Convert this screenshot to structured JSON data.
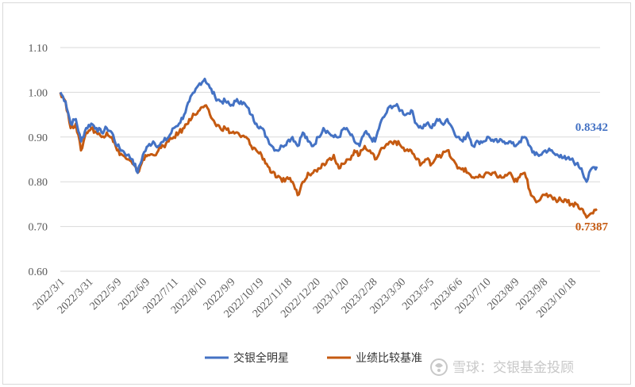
{
  "chart_data": {
    "type": "line",
    "title": "",
    "xlabel": "",
    "ylabel": "",
    "ylim": [
      0.6,
      1.1
    ],
    "yticks": [
      "0.60",
      "0.70",
      "0.80",
      "0.90",
      "1.00",
      "1.10"
    ],
    "xticks": [
      "2022/3/1",
      "2022/3/31",
      "2022/5/9",
      "2022/6/9",
      "2022/7/11",
      "2022/8/10",
      "2022/9/9",
      "2022/10/19",
      "2022/11/18",
      "2022/12/20",
      "2023/1/20",
      "2023/2/28",
      "2023/3/30",
      "2023/5/5",
      "2023/6/6",
      "2023/7/10",
      "2023/8/9",
      "2023/9/8",
      "2023/10/18"
    ],
    "grid": true,
    "legend_position": "bottom",
    "series": [
      {
        "name": "交银全明星",
        "color": "#4472c4",
        "end_label": "0.8342",
        "values": [
          1.0,
          0.98,
          0.93,
          0.94,
          0.89,
          0.92,
          0.93,
          0.92,
          0.91,
          0.92,
          0.91,
          0.88,
          0.87,
          0.86,
          0.85,
          0.82,
          0.86,
          0.88,
          0.89,
          0.88,
          0.89,
          0.9,
          0.92,
          0.93,
          0.95,
          0.98,
          1.0,
          1.02,
          1.03,
          1.01,
          0.99,
          0.98,
          0.98,
          0.97,
          0.98,
          0.98,
          0.97,
          0.95,
          0.93,
          0.92,
          0.9,
          0.88,
          0.87,
          0.88,
          0.89,
          0.9,
          0.88,
          0.91,
          0.89,
          0.88,
          0.9,
          0.92,
          0.91,
          0.9,
          0.9,
          0.92,
          0.91,
          0.89,
          0.88,
          0.91,
          0.9,
          0.89,
          0.93,
          0.95,
          0.97,
          0.97,
          0.96,
          0.95,
          0.96,
          0.93,
          0.92,
          0.93,
          0.92,
          0.94,
          0.93,
          0.94,
          0.92,
          0.9,
          0.89,
          0.91,
          0.88,
          0.89,
          0.89,
          0.9,
          0.89,
          0.89,
          0.89,
          0.89,
          0.88,
          0.89,
          0.9,
          0.88,
          0.86,
          0.86,
          0.87,
          0.87,
          0.86,
          0.86,
          0.85,
          0.85,
          0.84,
          0.83,
          0.8,
          0.83,
          0.834
        ]
      },
      {
        "name": "业绩比较基准",
        "color": "#c55a11",
        "end_label": "0.7387",
        "values": [
          1.0,
          0.98,
          0.92,
          0.93,
          0.87,
          0.91,
          0.92,
          0.91,
          0.9,
          0.91,
          0.9,
          0.87,
          0.86,
          0.85,
          0.84,
          0.82,
          0.85,
          0.86,
          0.86,
          0.87,
          0.88,
          0.89,
          0.9,
          0.91,
          0.92,
          0.94,
          0.95,
          0.96,
          0.97,
          0.95,
          0.93,
          0.92,
          0.92,
          0.91,
          0.91,
          0.9,
          0.9,
          0.88,
          0.87,
          0.86,
          0.84,
          0.82,
          0.81,
          0.8,
          0.81,
          0.8,
          0.77,
          0.8,
          0.82,
          0.82,
          0.83,
          0.84,
          0.85,
          0.86,
          0.83,
          0.84,
          0.85,
          0.87,
          0.86,
          0.88,
          0.87,
          0.85,
          0.87,
          0.88,
          0.89,
          0.89,
          0.88,
          0.87,
          0.87,
          0.85,
          0.84,
          0.85,
          0.84,
          0.86,
          0.86,
          0.87,
          0.85,
          0.83,
          0.83,
          0.82,
          0.81,
          0.81,
          0.81,
          0.82,
          0.82,
          0.81,
          0.81,
          0.82,
          0.8,
          0.81,
          0.82,
          0.78,
          0.76,
          0.76,
          0.77,
          0.77,
          0.76,
          0.76,
          0.76,
          0.75,
          0.75,
          0.74,
          0.72,
          0.73,
          0.739
        ]
      }
    ]
  },
  "legend": [
    {
      "label": "交银全明星",
      "color": "#4472c4"
    },
    {
      "label": "业绩比较基准",
      "color": "#c55a11"
    }
  ],
  "watermark": {
    "text": "雪球：交银基金投顾",
    "icon": "snowball-logo-icon"
  }
}
